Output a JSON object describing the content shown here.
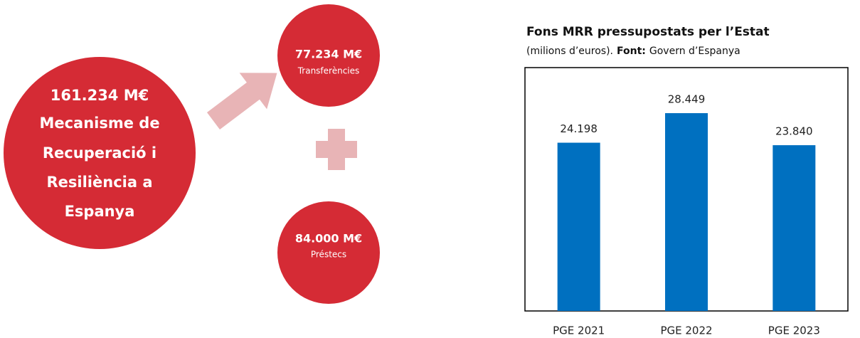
{
  "infographic": {
    "total": {
      "amount": "161.234 M€",
      "lines": [
        "Mecanisme de",
        "Recuperació i",
        "Resiliència a",
        "Espanya"
      ]
    },
    "transfers": {
      "amount": "77.234 M€",
      "label": "Transferències"
    },
    "loans": {
      "amount": "84.000 M€",
      "label": "Préstecs"
    }
  },
  "chart_data": {
    "type": "bar",
    "title": "Fons MRR pressupostats per l’Estat",
    "subtitle": {
      "text": "(milions d’euros).",
      "source_label": "Font:",
      "source": "Govern d’Espanya"
    },
    "categories": [
      "PGE 2021",
      "PGE 2022",
      "PGE 2023"
    ],
    "values": [
      24198,
      28449,
      23840
    ],
    "value_labels": [
      "24.198",
      "28.449",
      "23.840"
    ],
    "color": "#0070c0",
    "ylim": [
      0,
      35000
    ]
  }
}
